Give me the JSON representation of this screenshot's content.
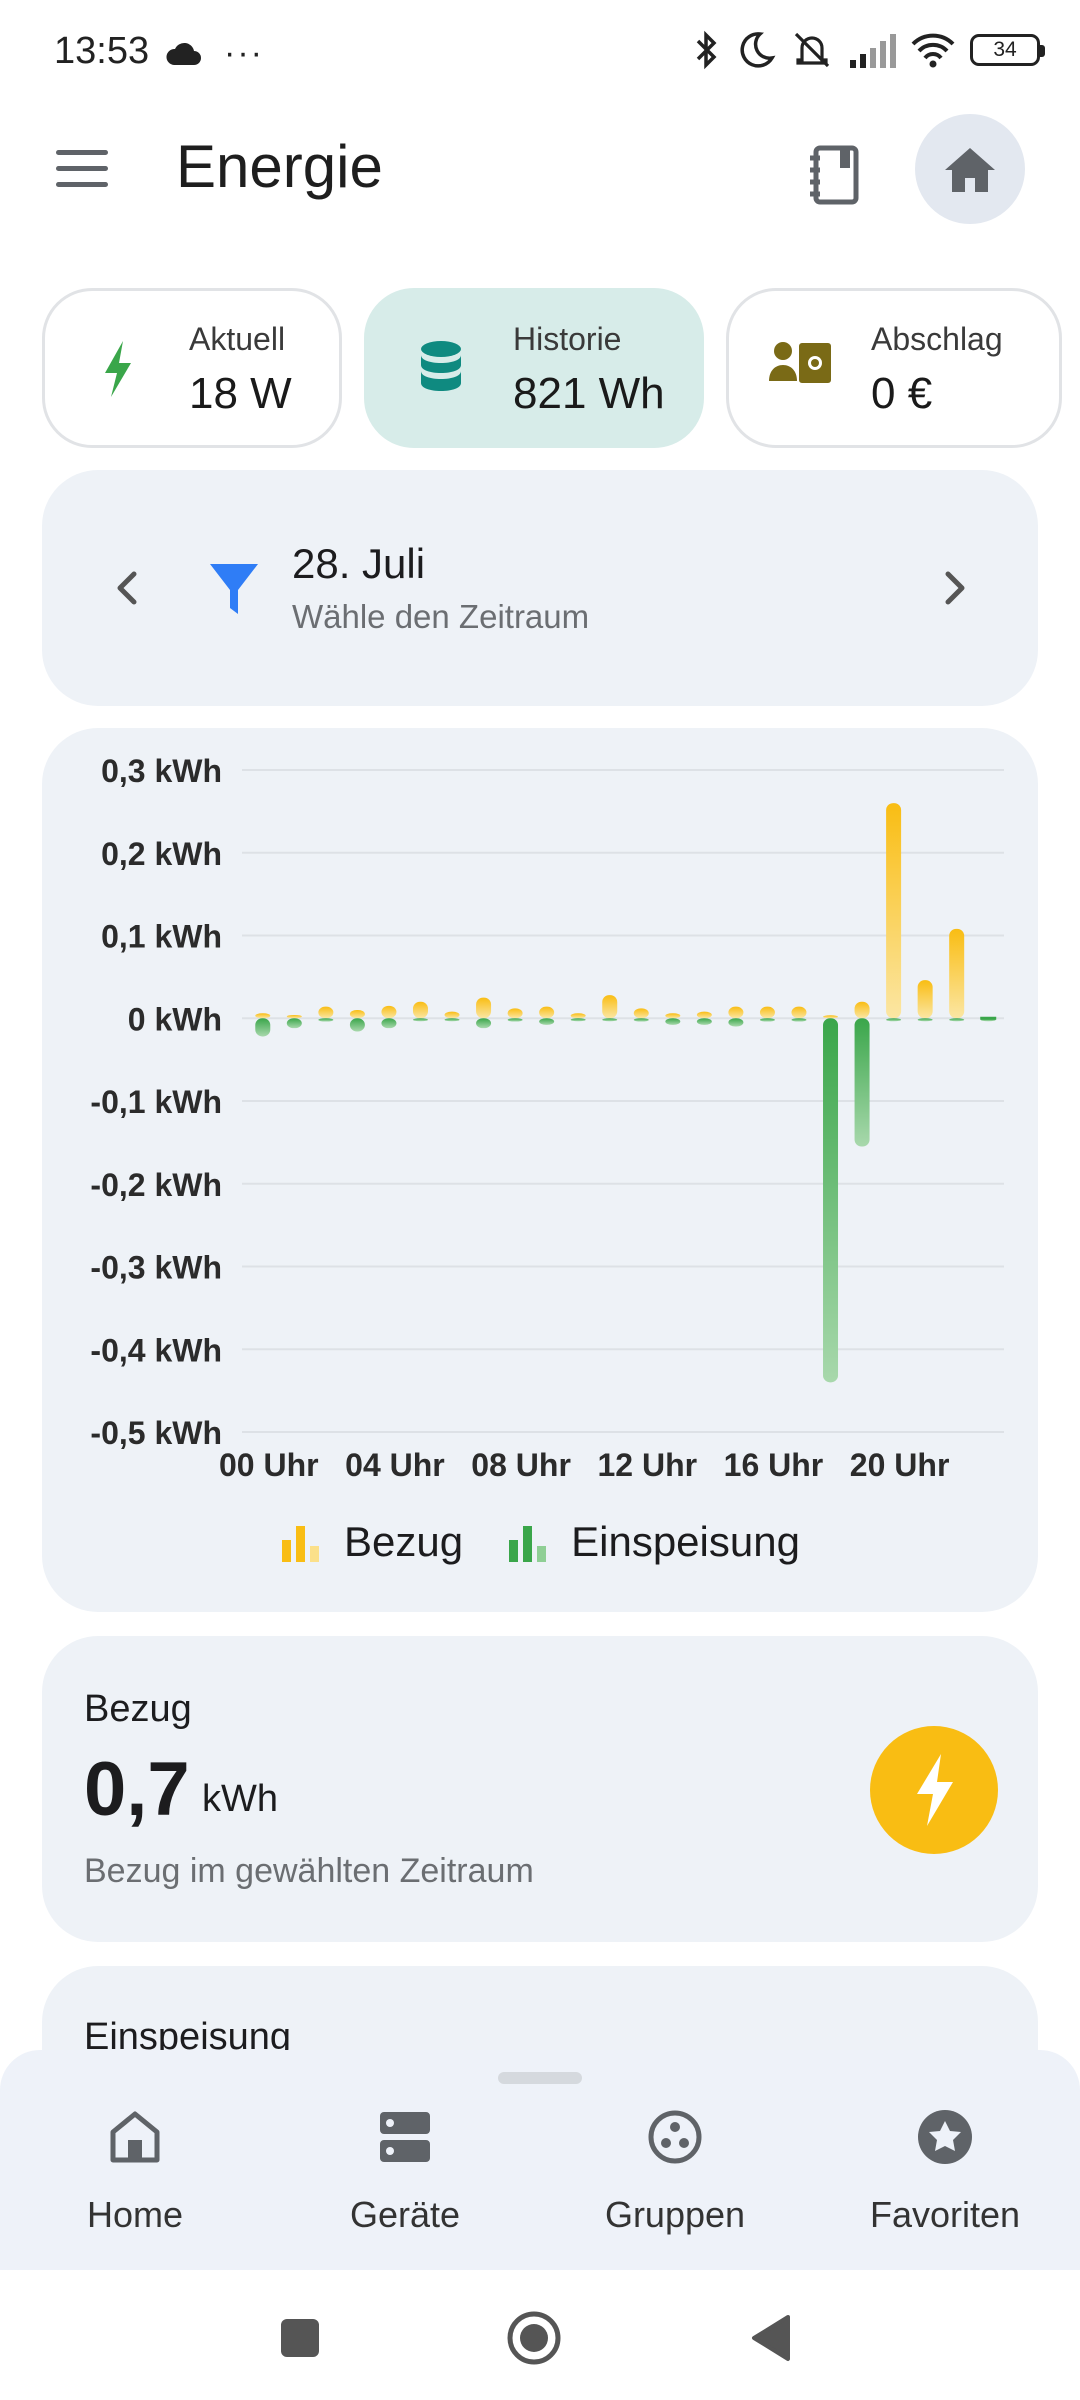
{
  "status_bar": {
    "time": "13:53",
    "overflow": "···",
    "battery": "34"
  },
  "app_bar": {
    "title": "Energie"
  },
  "chips": [
    {
      "label": "Aktuell",
      "value": "18 W",
      "icon": "bolt-icon",
      "active": false
    },
    {
      "label": "Historie",
      "value": "821 Wh",
      "icon": "database-icon",
      "active": true
    },
    {
      "label": "Abschlag",
      "value": "0 €",
      "icon": "payment-icon",
      "active": false
    }
  ],
  "period": {
    "date": "28. Juli",
    "hint": "Wähle den Zeitraum"
  },
  "colors": {
    "bezug": "#f9bd13",
    "einspeisung": "#3aa64a",
    "accent_teal": "#0f8a80",
    "filter_blue": "#2f7df6"
  },
  "chart_data": {
    "type": "bar",
    "ylabel_unit": "kWh",
    "ylim": [
      -0.5,
      0.3
    ],
    "yticks": [
      "0,3 kWh",
      "0,2 kWh",
      "0,1 kWh",
      "0 kWh",
      "-0,1 kWh",
      "-0,2 kWh",
      "-0,3 kWh",
      "-0,4 kWh",
      "-0,5 kWh"
    ],
    "ytick_values": [
      0.3,
      0.2,
      0.1,
      0,
      -0.1,
      -0.2,
      -0.3,
      -0.4,
      -0.5
    ],
    "categories": [
      "00",
      "01",
      "02",
      "03",
      "04",
      "05",
      "06",
      "07",
      "08",
      "09",
      "10",
      "11",
      "12",
      "13",
      "14",
      "15",
      "16",
      "17",
      "18",
      "19",
      "20",
      "21",
      "22",
      "23"
    ],
    "xticks": [
      "00 Uhr",
      "04 Uhr",
      "08 Uhr",
      "12 Uhr",
      "16 Uhr",
      "20 Uhr"
    ],
    "xtick_indices": [
      0,
      4,
      8,
      12,
      16,
      20
    ],
    "grid": true,
    "legend_position": "bottom",
    "series": [
      {
        "name": "Bezug",
        "values": [
          0.006,
          0.004,
          0.014,
          0.01,
          0.015,
          0.02,
          0.008,
          0.025,
          0.012,
          0.014,
          0.006,
          0.028,
          0.012,
          0.006,
          0.008,
          0.014,
          0.014,
          0.014,
          0.003,
          0.02,
          0.26,
          0.046,
          0.108,
          0.0
        ]
      },
      {
        "name": "Einspeisung",
        "values": [
          -0.022,
          -0.012,
          -0.004,
          -0.016,
          -0.012,
          -0.002,
          -0.003,
          -0.012,
          -0.004,
          -0.008,
          -0.002,
          -0.002,
          -0.004,
          -0.008,
          -0.008,
          -0.01,
          -0.004,
          -0.004,
          -0.44,
          -0.155,
          -0.003,
          -0.002,
          -0.003,
          -0.002
        ]
      }
    ]
  },
  "bezug_card": {
    "title": "Bezug",
    "value": "0,7",
    "unit": "kWh",
    "description": "Bezug im gewählten Zeitraum"
  },
  "einspeisung_card": {
    "title": "Einspeisung"
  },
  "bottom_nav": [
    {
      "label": "Home",
      "icon": "home-outline-icon"
    },
    {
      "label": "Geräte",
      "icon": "devices-icon"
    },
    {
      "label": "Gruppen",
      "icon": "groups-icon"
    },
    {
      "label": "Favoriten",
      "icon": "favorites-star-icon"
    }
  ]
}
